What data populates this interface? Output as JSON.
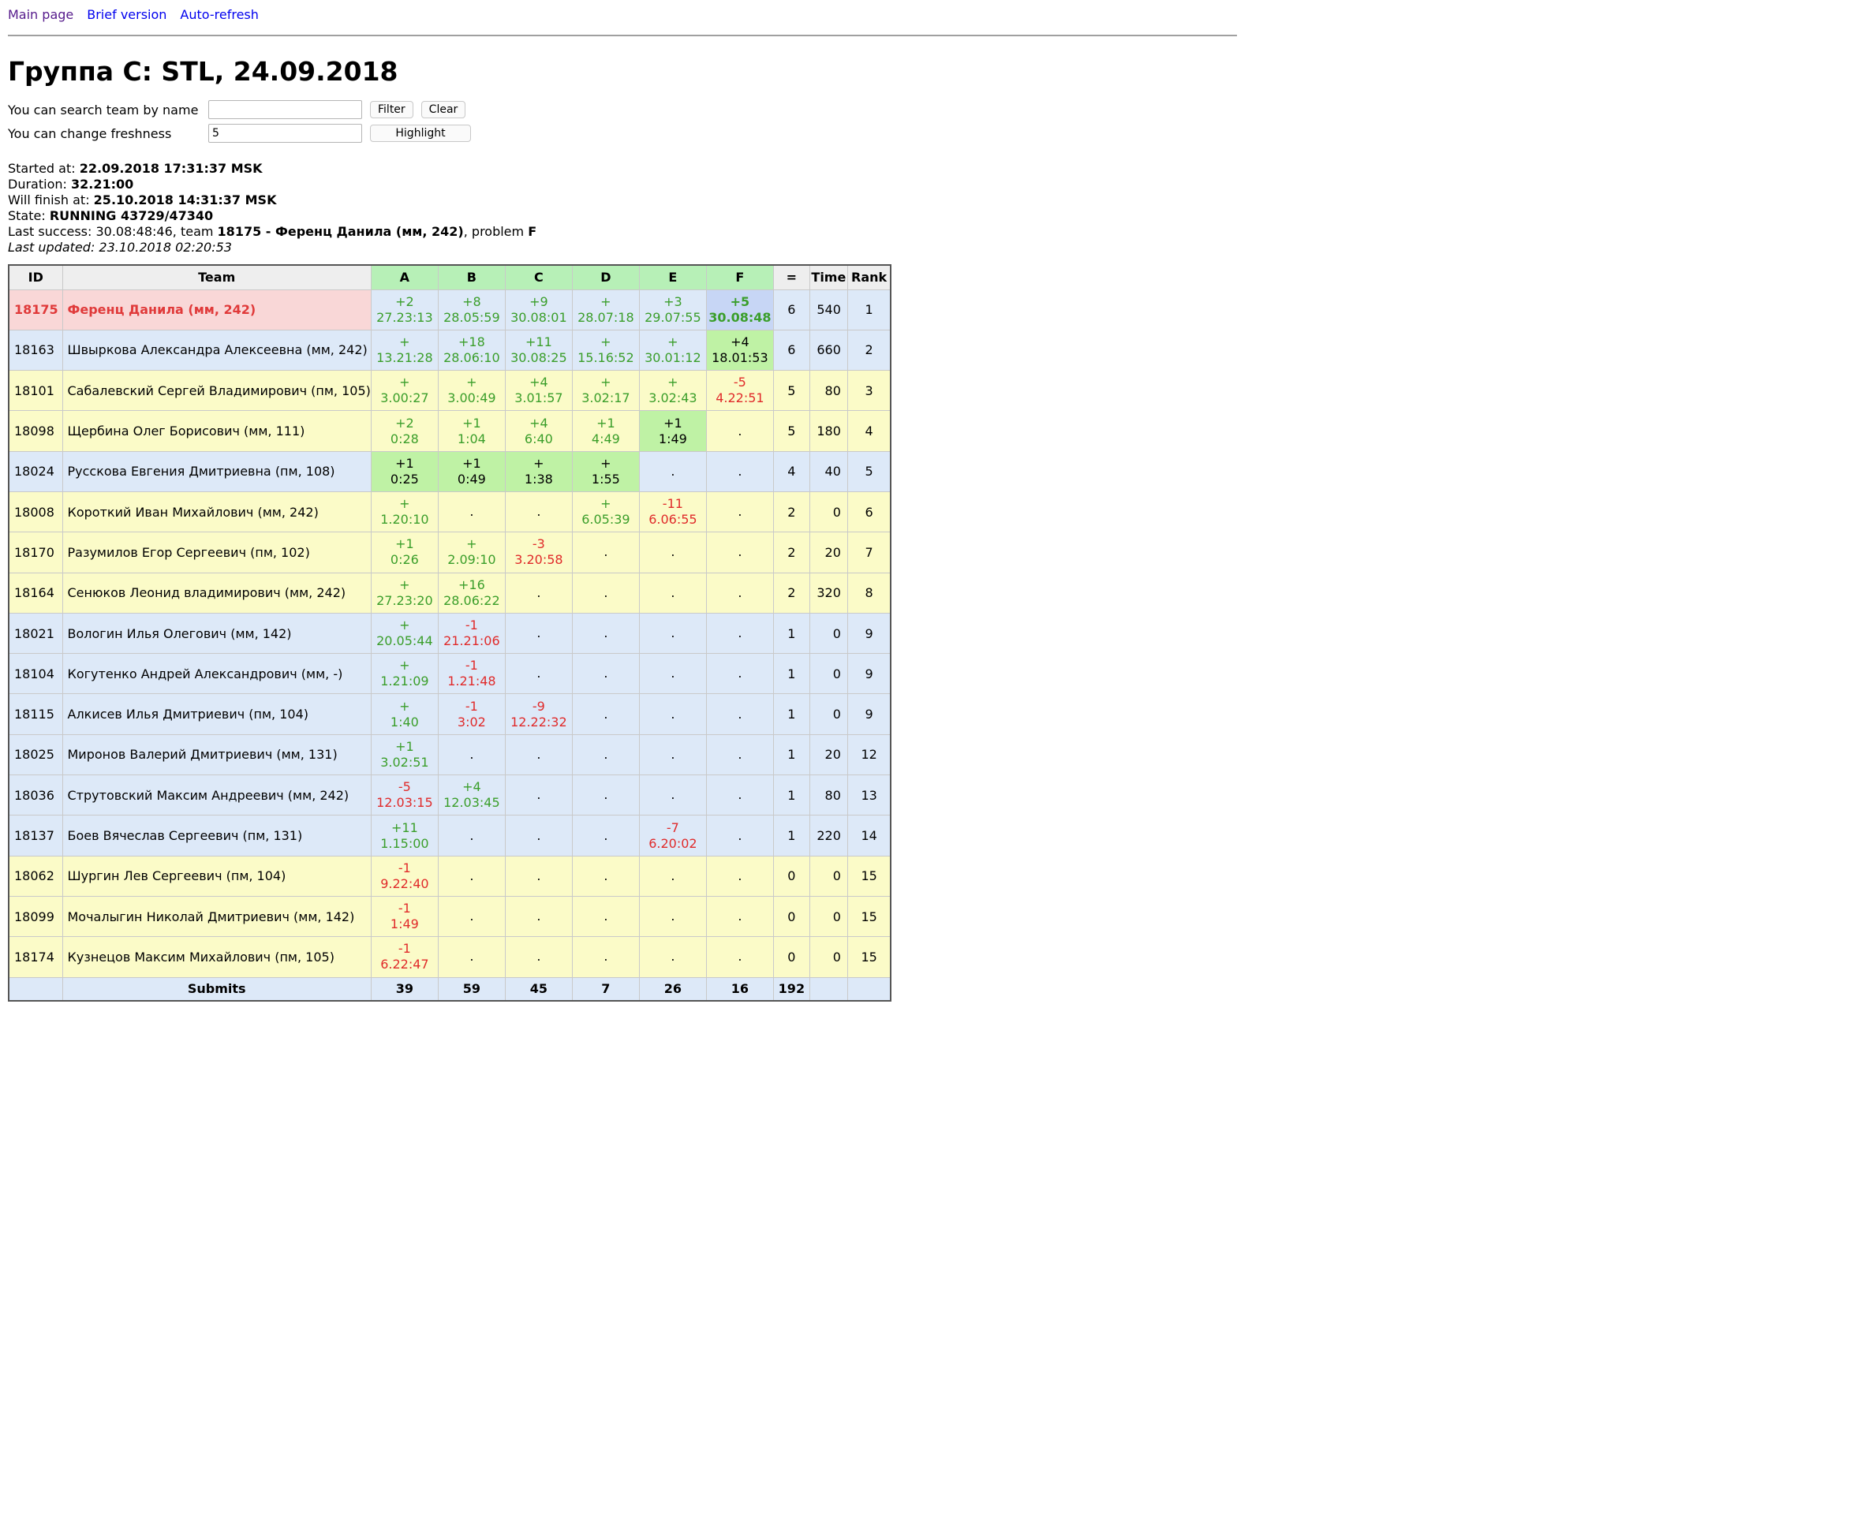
{
  "nav": [
    {
      "label": "Main page",
      "kind": "visited"
    },
    {
      "label": "Brief version",
      "kind": "link"
    },
    {
      "label": "Auto-refresh",
      "kind": "link"
    }
  ],
  "title": "Группа C: STL, 24.09.2018",
  "search": {
    "label": "You can search team by name",
    "value": "",
    "filter_label": "Filter",
    "clear_label": "Clear"
  },
  "freshness": {
    "label": "You can change freshness",
    "value": "5",
    "highlight_label": "Highlight"
  },
  "info": {
    "started_label": "Started at: ",
    "started": "22.09.2018 17:31:37 MSK",
    "duration_label": "Duration: ",
    "duration": "32.21:00",
    "finish_label": "Will finish at: ",
    "finish": "25.10.2018 14:31:37 MSK",
    "state_label": "State: ",
    "state": "RUNNING 43729/47340",
    "last_success_prefix": "Last success: 30.08:48:46, team ",
    "last_success_team": "18175 - Ференц Данила (мм, 242)",
    "last_success_mid": ", problem ",
    "last_success_problem": "F",
    "updated": "Last updated: 23.10.2018 02:20:53"
  },
  "headers": {
    "id": "ID",
    "team": "Team",
    "problems": [
      "A",
      "B",
      "C",
      "D",
      "E",
      "F"
    ],
    "eq": "=",
    "time": "Time",
    "rank": "Rank"
  },
  "rows": [
    {
      "id": "18175",
      "team": "Ференц Данила (мм, 242)",
      "style": "leader",
      "eq": "6",
      "time": "540",
      "rank": "1",
      "cells": [
        {
          "s": "+2",
          "t": "27.23:13",
          "k": "ok"
        },
        {
          "s": "+8",
          "t": "28.05:59",
          "k": "ok"
        },
        {
          "s": "+9",
          "t": "30.08:01",
          "k": "ok"
        },
        {
          "s": "+",
          "t": "28.07:18",
          "k": "ok"
        },
        {
          "s": "+3",
          "t": "29.07:55",
          "k": "ok"
        },
        {
          "s": "+5",
          "t": "30.08:48",
          "k": "ok",
          "hl": "last"
        }
      ]
    },
    {
      "id": "18163",
      "team": "Швыркова Александра Алексеевна (мм, 242)",
      "style": "blue",
      "eq": "6",
      "time": "660",
      "rank": "2",
      "cells": [
        {
          "s": "+",
          "t": "13.21:28",
          "k": "ok"
        },
        {
          "s": "+18",
          "t": "28.06:10",
          "k": "ok"
        },
        {
          "s": "+11",
          "t": "30.08:25",
          "k": "ok"
        },
        {
          "s": "+",
          "t": "15.16:52",
          "k": "ok"
        },
        {
          "s": "+",
          "t": "30.01:12",
          "k": "ok"
        },
        {
          "s": "+4",
          "t": "18.01:53",
          "k": "ok",
          "hl": "fresh"
        }
      ]
    },
    {
      "id": "18101",
      "team": "Сабалевский Сергей Владимирович (пм, 105)",
      "style": "yellow",
      "eq": "5",
      "time": "80",
      "rank": "3",
      "cells": [
        {
          "s": "+",
          "t": "3.00:27",
          "k": "ok"
        },
        {
          "s": "+",
          "t": "3.00:49",
          "k": "ok"
        },
        {
          "s": "+4",
          "t": "3.01:57",
          "k": "ok"
        },
        {
          "s": "+",
          "t": "3.02:17",
          "k": "ok"
        },
        {
          "s": "+",
          "t": "3.02:43",
          "k": "ok"
        },
        {
          "s": "-5",
          "t": "4.22:51",
          "k": "bad"
        }
      ]
    },
    {
      "id": "18098",
      "team": "Щербина Олег Борисович (мм, 111)",
      "style": "yellow",
      "eq": "5",
      "time": "180",
      "rank": "4",
      "cells": [
        {
          "s": "+2",
          "t": "0:28",
          "k": "ok"
        },
        {
          "s": "+1",
          "t": "1:04",
          "k": "ok"
        },
        {
          "s": "+4",
          "t": "6:40",
          "k": "ok"
        },
        {
          "s": "+1",
          "t": "4:49",
          "k": "ok"
        },
        {
          "s": "+1",
          "t": "1:49",
          "k": "ok",
          "hl": "fresh"
        },
        {
          "s": ".",
          "t": "",
          "k": "none"
        }
      ]
    },
    {
      "id": "18024",
      "team": "Русскова Евгения Дмитриевна (пм, 108)",
      "style": "blue",
      "eq": "4",
      "time": "40",
      "rank": "5",
      "cells": [
        {
          "s": "+1",
          "t": "0:25",
          "k": "ok",
          "hl": "fresh"
        },
        {
          "s": "+1",
          "t": "0:49",
          "k": "ok",
          "hl": "fresh"
        },
        {
          "s": "+",
          "t": "1:38",
          "k": "ok",
          "hl": "fresh"
        },
        {
          "s": "+",
          "t": "1:55",
          "k": "ok",
          "hl": "fresh"
        },
        {
          "s": ".",
          "t": "",
          "k": "none"
        },
        {
          "s": ".",
          "t": "",
          "k": "none"
        }
      ]
    },
    {
      "id": "18008",
      "team": "Короткий Иван Михайлович (мм, 242)",
      "style": "yellow",
      "eq": "2",
      "time": "0",
      "rank": "6",
      "cells": [
        {
          "s": "+",
          "t": "1.20:10",
          "k": "ok"
        },
        {
          "s": ".",
          "t": "",
          "k": "none"
        },
        {
          "s": ".",
          "t": "",
          "k": "none"
        },
        {
          "s": "+",
          "t": "6.05:39",
          "k": "ok"
        },
        {
          "s": "-11",
          "t": "6.06:55",
          "k": "bad"
        },
        {
          "s": ".",
          "t": "",
          "k": "none"
        }
      ]
    },
    {
      "id": "18170",
      "team": "Разумилов Егор Сергеевич (пм, 102)",
      "style": "yellow",
      "eq": "2",
      "time": "20",
      "rank": "7",
      "cells": [
        {
          "s": "+1",
          "t": "0:26",
          "k": "ok"
        },
        {
          "s": "+",
          "t": "2.09:10",
          "k": "ok"
        },
        {
          "s": "-3",
          "t": "3.20:58",
          "k": "bad"
        },
        {
          "s": ".",
          "t": "",
          "k": "none"
        },
        {
          "s": ".",
          "t": "",
          "k": "none"
        },
        {
          "s": ".",
          "t": "",
          "k": "none"
        }
      ]
    },
    {
      "id": "18164",
      "team": "Сенюков Леонид владимирович (мм, 242)",
      "style": "yellow",
      "eq": "2",
      "time": "320",
      "rank": "8",
      "cells": [
        {
          "s": "+",
          "t": "27.23:20",
          "k": "ok"
        },
        {
          "s": "+16",
          "t": "28.06:22",
          "k": "ok"
        },
        {
          "s": ".",
          "t": "",
          "k": "none"
        },
        {
          "s": ".",
          "t": "",
          "k": "none"
        },
        {
          "s": ".",
          "t": "",
          "k": "none"
        },
        {
          "s": ".",
          "t": "",
          "k": "none"
        }
      ]
    },
    {
      "id": "18021",
      "team": "Вологин Илья Олегович (мм, 142)",
      "style": "blue",
      "eq": "1",
      "time": "0",
      "rank": "9",
      "cells": [
        {
          "s": "+",
          "t": "20.05:44",
          "k": "ok"
        },
        {
          "s": "-1",
          "t": "21.21:06",
          "k": "bad"
        },
        {
          "s": ".",
          "t": "",
          "k": "none"
        },
        {
          "s": ".",
          "t": "",
          "k": "none"
        },
        {
          "s": ".",
          "t": "",
          "k": "none"
        },
        {
          "s": ".",
          "t": "",
          "k": "none"
        }
      ]
    },
    {
      "id": "18104",
      "team": "Когутенко Андрей Александрович (мм, -)",
      "style": "blue",
      "eq": "1",
      "time": "0",
      "rank": "9",
      "cells": [
        {
          "s": "+",
          "t": "1.21:09",
          "k": "ok"
        },
        {
          "s": "-1",
          "t": "1.21:48",
          "k": "bad"
        },
        {
          "s": ".",
          "t": "",
          "k": "none"
        },
        {
          "s": ".",
          "t": "",
          "k": "none"
        },
        {
          "s": ".",
          "t": "",
          "k": "none"
        },
        {
          "s": ".",
          "t": "",
          "k": "none"
        }
      ]
    },
    {
      "id": "18115",
      "team": "Алкисев Илья Дмитриевич (пм, 104)",
      "style": "blue",
      "eq": "1",
      "time": "0",
      "rank": "9",
      "cells": [
        {
          "s": "+",
          "t": "1:40",
          "k": "ok"
        },
        {
          "s": "-1",
          "t": "3:02",
          "k": "bad"
        },
        {
          "s": "-9",
          "t": "12.22:32",
          "k": "bad"
        },
        {
          "s": ".",
          "t": "",
          "k": "none"
        },
        {
          "s": ".",
          "t": "",
          "k": "none"
        },
        {
          "s": ".",
          "t": "",
          "k": "none"
        }
      ]
    },
    {
      "id": "18025",
      "team": "Миронов Валерий Дмитриевич (мм, 131)",
      "style": "blue",
      "eq": "1",
      "time": "20",
      "rank": "12",
      "cells": [
        {
          "s": "+1",
          "t": "3.02:51",
          "k": "ok"
        },
        {
          "s": ".",
          "t": "",
          "k": "none"
        },
        {
          "s": ".",
          "t": "",
          "k": "none"
        },
        {
          "s": ".",
          "t": "",
          "k": "none"
        },
        {
          "s": ".",
          "t": "",
          "k": "none"
        },
        {
          "s": ".",
          "t": "",
          "k": "none"
        }
      ]
    },
    {
      "id": "18036",
      "team": "Струтовский Максим Андреевич (мм, 242)",
      "style": "blue",
      "eq": "1",
      "time": "80",
      "rank": "13",
      "cells": [
        {
          "s": "-5",
          "t": "12.03:15",
          "k": "bad"
        },
        {
          "s": "+4",
          "t": "12.03:45",
          "k": "ok"
        },
        {
          "s": ".",
          "t": "",
          "k": "none"
        },
        {
          "s": ".",
          "t": "",
          "k": "none"
        },
        {
          "s": ".",
          "t": "",
          "k": "none"
        },
        {
          "s": ".",
          "t": "",
          "k": "none"
        }
      ]
    },
    {
      "id": "18137",
      "team": "Боев Вячеслав Сергеевич (пм, 131)",
      "style": "blue",
      "eq": "1",
      "time": "220",
      "rank": "14",
      "cells": [
        {
          "s": "+11",
          "t": "1.15:00",
          "k": "ok"
        },
        {
          "s": ".",
          "t": "",
          "k": "none"
        },
        {
          "s": ".",
          "t": "",
          "k": "none"
        },
        {
          "s": ".",
          "t": "",
          "k": "none"
        },
        {
          "s": "-7",
          "t": "6.20:02",
          "k": "bad"
        },
        {
          "s": ".",
          "t": "",
          "k": "none"
        }
      ]
    },
    {
      "id": "18062",
      "team": "Шургин Лев Сергеевич (пм, 104)",
      "style": "yellow",
      "eq": "0",
      "time": "0",
      "rank": "15",
      "cells": [
        {
          "s": "-1",
          "t": "9.22:40",
          "k": "bad"
        },
        {
          "s": ".",
          "t": "",
          "k": "none"
        },
        {
          "s": ".",
          "t": "",
          "k": "none"
        },
        {
          "s": ".",
          "t": "",
          "k": "none"
        },
        {
          "s": ".",
          "t": "",
          "k": "none"
        },
        {
          "s": ".",
          "t": "",
          "k": "none"
        }
      ]
    },
    {
      "id": "18099",
      "team": "Мочалыгин Николай Дмитриевич (мм, 142)",
      "style": "yellow",
      "eq": "0",
      "time": "0",
      "rank": "15",
      "cells": [
        {
          "s": "-1",
          "t": "1:49",
          "k": "bad"
        },
        {
          "s": ".",
          "t": "",
          "k": "none"
        },
        {
          "s": ".",
          "t": "",
          "k": "none"
        },
        {
          "s": ".",
          "t": "",
          "k": "none"
        },
        {
          "s": ".",
          "t": "",
          "k": "none"
        },
        {
          "s": ".",
          "t": "",
          "k": "none"
        }
      ]
    },
    {
      "id": "18174",
      "team": "Кузнецов Максим Михайлович (пм, 105)",
      "style": "yellow",
      "eq": "0",
      "time": "0",
      "rank": "15",
      "cells": [
        {
          "s": "-1",
          "t": "6.22:47",
          "k": "bad"
        },
        {
          "s": ".",
          "t": "",
          "k": "none"
        },
        {
          "s": ".",
          "t": "",
          "k": "none"
        },
        {
          "s": ".",
          "t": "",
          "k": "none"
        },
        {
          "s": ".",
          "t": "",
          "k": "none"
        },
        {
          "s": ".",
          "t": "",
          "k": "none"
        }
      ]
    }
  ],
  "totals": {
    "label": "Submits",
    "values": [
      "39",
      "59",
      "45",
      "7",
      "26",
      "16"
    ],
    "eq": "192"
  }
}
